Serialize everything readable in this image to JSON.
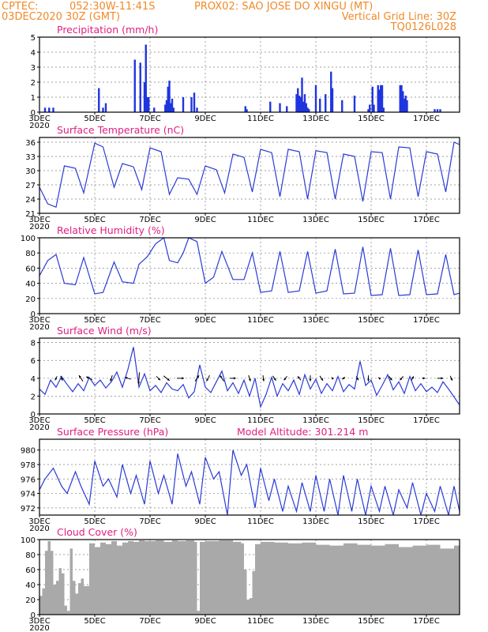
{
  "header": {
    "line1_left": "CPTEC:",
    "coords": "052:30W-11:41S",
    "station": "PROX02: SAO JOSE DO XINGU (MT)",
    "date": "03DEC2020 30Z (GMT)",
    "grid_note": "Vertical Grid Line: 30Z",
    "model_code": "TQ0126L028"
  },
  "x_axis": {
    "start_day": 3,
    "end_day": 18.2,
    "tick_days": [
      3,
      5,
      7,
      9,
      11,
      13,
      15,
      17
    ],
    "tick_labels": [
      "3DEC",
      "5DEC",
      "7DEC",
      "9DEC",
      "11DEC",
      "13DEC",
      "15DEC",
      "17DEC"
    ],
    "year_label": "2020"
  },
  "colors": {
    "header": "#f08a28",
    "panel_title": "#e0207f",
    "series_line": "#2a3bd6",
    "precip_bar": "#1f35e0",
    "cloud_fill": "#a9a9a9",
    "wind_arrow": "#000000"
  },
  "chart_data": [
    {
      "id": "precip",
      "type": "bar",
      "title": "Precipitation (mm/h)",
      "ylim": [
        0,
        5
      ],
      "yticks": [
        0,
        1,
        2,
        3,
        4,
        5
      ],
      "x": [
        3.2,
        3.35,
        3.5,
        5.15,
        5.3,
        5.4,
        6.45,
        6.65,
        6.8,
        6.85,
        6.9,
        6.95,
        7.15,
        7.55,
        7.6,
        7.65,
        7.7,
        7.75,
        7.8,
        7.85,
        8.2,
        8.5,
        8.6,
        8.7,
        10.45,
        10.5,
        11.35,
        11.7,
        11.95,
        12.3,
        12.35,
        12.4,
        12.45,
        12.5,
        12.55,
        12.6,
        12.65,
        12.7,
        12.75,
        13.0,
        13.15,
        13.35,
        13.55,
        13.6,
        13.95,
        14.4,
        14.9,
        14.95,
        15.05,
        15.1,
        15.25,
        15.3,
        15.35,
        15.4,
        15.45,
        16.05,
        16.1,
        16.15,
        16.2,
        16.25,
        16.3,
        17.3,
        17.4,
        17.5
      ],
      "values": [
        0.3,
        0.3,
        0.3,
        1.6,
        0.3,
        0.6,
        3.5,
        3.3,
        2.0,
        4.5,
        1.0,
        1.0,
        0.3,
        0.5,
        0.8,
        1.7,
        2.1,
        0.6,
        0.9,
        0.3,
        1.0,
        1.0,
        1.3,
        0.3,
        0.4,
        0.2,
        0.7,
        0.6,
        0.4,
        1.2,
        1.6,
        1.1,
        1.0,
        2.3,
        0.7,
        1.2,
        0.6,
        0.3,
        0.2,
        1.8,
        0.9,
        1.2,
        2.7,
        1.6,
        0.8,
        1.1,
        0.2,
        0.5,
        1.7,
        0.5,
        1.8,
        1.5,
        1.8,
        1.8,
        0.3,
        1.8,
        1.8,
        1.4,
        0.9,
        1.1,
        0.8,
        0.2,
        0.2,
        0.2
      ]
    },
    {
      "id": "temp",
      "type": "line",
      "title": "Surface Temperature (nC)",
      "ylim": [
        21,
        37
      ],
      "yticks": [
        21,
        24,
        27,
        30,
        33,
        36
      ],
      "x": [
        3.0,
        3.3,
        3.6,
        3.9,
        4.3,
        4.6,
        5.0,
        5.3,
        5.7,
        6.0,
        6.4,
        6.7,
        7.0,
        7.4,
        7.7,
        8.0,
        8.4,
        8.7,
        9.0,
        9.4,
        9.7,
        10.0,
        10.4,
        10.7,
        11.0,
        11.4,
        11.7,
        12.0,
        12.4,
        12.7,
        13.0,
        13.4,
        13.7,
        14.0,
        14.4,
        14.7,
        15.0,
        15.4,
        15.7,
        16.0,
        16.4,
        16.7,
        17.0,
        17.4,
        17.7,
        18.0,
        18.2
      ],
      "values": [
        26.5,
        23,
        22.3,
        31,
        30.5,
        25.3,
        35.8,
        35,
        26.5,
        31.5,
        30.8,
        26,
        34.8,
        34,
        25,
        28.5,
        28.2,
        25,
        31,
        30.2,
        25.3,
        33.5,
        32.8,
        25.5,
        34.5,
        33.8,
        24.5,
        34.5,
        34,
        24,
        34.2,
        33.8,
        24,
        33.5,
        33,
        23.5,
        34,
        33.8,
        24,
        35,
        34.8,
        24.5,
        34,
        33.5,
        25.5,
        36,
        35.5
      ]
    },
    {
      "id": "humidity",
      "type": "line",
      "title": "Relative Humidity (%)",
      "ylim": [
        0,
        100
      ],
      "yticks": [
        0,
        20,
        40,
        60,
        80,
        100
      ],
      "x": [
        3.0,
        3.3,
        3.6,
        3.9,
        4.3,
        4.6,
        5.0,
        5.3,
        5.7,
        6.0,
        6.4,
        6.6,
        6.9,
        7.2,
        7.5,
        7.7,
        8.0,
        8.2,
        8.4,
        8.7,
        9.0,
        9.3,
        9.6,
        10.0,
        10.4,
        10.7,
        11.0,
        11.4,
        11.7,
        12.0,
        12.4,
        12.7,
        13.0,
        13.4,
        13.7,
        14.0,
        14.4,
        14.7,
        15.0,
        15.4,
        15.7,
        16.0,
        16.4,
        16.7,
        17.0,
        17.4,
        17.7,
        18.0,
        18.2
      ],
      "values": [
        50,
        70,
        78,
        40,
        38,
        74,
        26,
        28,
        68,
        42,
        40,
        65,
        75,
        92,
        100,
        70,
        67,
        80,
        100,
        95,
        40,
        48,
        82,
        45,
        45,
        80,
        28,
        30,
        82,
        28,
        30,
        82,
        27,
        30,
        85,
        26,
        27,
        88,
        24,
        25,
        86,
        24,
        25,
        84,
        25,
        26,
        78,
        25,
        27
      ]
    },
    {
      "id": "wind",
      "type": "line",
      "title": "Surface Wind (m/s)",
      "ylim": [
        0,
        8.5
      ],
      "yticks": [
        0,
        2,
        4,
        6,
        8
      ],
      "x": [
        3.0,
        3.2,
        3.4,
        3.6,
        3.8,
        4.0,
        4.2,
        4.4,
        4.6,
        4.8,
        5.0,
        5.2,
        5.4,
        5.6,
        5.8,
        6.0,
        6.2,
        6.4,
        6.6,
        6.8,
        7.0,
        7.2,
        7.4,
        7.6,
        7.8,
        8.0,
        8.2,
        8.4,
        8.6,
        8.8,
        9.0,
        9.2,
        9.4,
        9.6,
        9.8,
        10.0,
        10.2,
        10.4,
        10.6,
        10.8,
        11.0,
        11.2,
        11.4,
        11.6,
        11.8,
        12.0,
        12.2,
        12.4,
        12.6,
        12.8,
        13.0,
        13.2,
        13.4,
        13.6,
        13.8,
        14.0,
        14.2,
        14.4,
        14.6,
        14.8,
        15.0,
        15.2,
        15.4,
        15.6,
        15.8,
        16.0,
        16.2,
        16.4,
        16.6,
        16.8,
        17.0,
        17.2,
        17.4,
        17.6,
        17.8,
        18.0,
        18.2
      ],
      "values": [
        2.8,
        2.2,
        3.8,
        3.0,
        4.2,
        3.3,
        2.5,
        3.4,
        2.6,
        4.1,
        3.2,
        3.8,
        2.9,
        3.6,
        4.7,
        3.0,
        5.0,
        7.5,
        3.0,
        4.5,
        2.6,
        3.2,
        2.4,
        3.5,
        2.8,
        2.6,
        3.3,
        1.8,
        2.5,
        5.5,
        3.0,
        2.4,
        3.6,
        4.8,
        2.6,
        3.5,
        2.3,
        3.8,
        2.0,
        4.0,
        0.8,
        2.2,
        4.1,
        2.0,
        3.4,
        2.6,
        3.8,
        2.2,
        4.4,
        2.8,
        3.9,
        2.3,
        3.4,
        2.6,
        4.2,
        2.5,
        3.3,
        2.8,
        5.9,
        3.2,
        3.8,
        2.1,
        3.2,
        4.4,
        2.7,
        3.6,
        2.3,
        4.2,
        2.6,
        3.4,
        2.5,
        3.0,
        2.4,
        3.6,
        2.8,
        1.9,
        1.0
      ]
    },
    {
      "id": "pressure",
      "type": "line",
      "title": "Surface Pressure (hPa)",
      "subtitle": "Model Altitude: 301.214 m",
      "ylim": [
        971,
        981.5
      ],
      "yticks": [
        972,
        974,
        976,
        978,
        980
      ],
      "x": [
        3.0,
        3.2,
        3.5,
        3.8,
        4.0,
        4.3,
        4.5,
        4.8,
        5.0,
        5.3,
        5.5,
        5.8,
        6.0,
        6.3,
        6.5,
        6.8,
        7.0,
        7.3,
        7.5,
        7.8,
        8.0,
        8.3,
        8.5,
        8.8,
        9.0,
        9.3,
        9.5,
        9.8,
        10.0,
        10.3,
        10.5,
        10.8,
        11.0,
        11.3,
        11.5,
        11.8,
        12.0,
        12.3,
        12.5,
        12.8,
        13.0,
        13.3,
        13.5,
        13.8,
        14.0,
        14.3,
        14.5,
        14.8,
        15.0,
        15.3,
        15.5,
        15.8,
        16.0,
        16.3,
        16.5,
        16.8,
        17.0,
        17.3,
        17.5,
        17.8,
        18.0,
        18.2
      ],
      "values": [
        974.5,
        976,
        977.5,
        975,
        974,
        977,
        975,
        972.5,
        978.5,
        975,
        976,
        973.5,
        978,
        974,
        976.5,
        972.5,
        978.5,
        974,
        976.5,
        972.5,
        979.5,
        975,
        977,
        972.5,
        979,
        976,
        977,
        971,
        980,
        976.5,
        978,
        972,
        977.5,
        973,
        976,
        971.5,
        975,
        971.5,
        975.5,
        971.5,
        976.5,
        971.5,
        976,
        971,
        976.5,
        971.5,
        976,
        971,
        975,
        971.5,
        975,
        971,
        974.5,
        972,
        975.5,
        971,
        974,
        971.5,
        975,
        971,
        975,
        971.5
      ]
    },
    {
      "id": "cloud",
      "type": "area",
      "title": "Cloud Cover (%)",
      "ylim": [
        0,
        100
      ],
      "yticks": [
        0,
        20,
        40,
        60,
        80,
        100
      ],
      "x": [
        3.0,
        3.1,
        3.2,
        3.3,
        3.4,
        3.5,
        3.6,
        3.7,
        3.8,
        3.9,
        4.0,
        4.1,
        4.2,
        4.3,
        4.4,
        4.5,
        4.6,
        4.8,
        5.0,
        5.2,
        5.4,
        5.6,
        5.8,
        6.0,
        6.2,
        6.4,
        6.6,
        6.8,
        7.0,
        7.2,
        7.5,
        7.8,
        8.0,
        8.3,
        8.6,
        8.7,
        8.8,
        9.0,
        9.5,
        10.0,
        10.3,
        10.4,
        10.5,
        10.6,
        10.7,
        10.8,
        11.0,
        11.5,
        12.0,
        12.5,
        13.0,
        13.5,
        14.0,
        14.5,
        15.0,
        15.5,
        16.0,
        16.5,
        17.0,
        17.5,
        18.0,
        18.2
      ],
      "values": [
        25,
        35,
        85,
        98,
        85,
        40,
        45,
        62,
        55,
        12,
        5,
        88,
        45,
        28,
        42,
        48,
        38,
        95,
        90,
        96,
        94,
        98,
        92,
        96,
        98,
        97,
        99,
        98,
        98,
        99,
        97,
        99,
        98,
        99,
        97,
        5,
        97,
        98,
        99,
        97,
        95,
        60,
        20,
        22,
        58,
        94,
        97,
        96,
        95,
        96,
        93,
        92,
        95,
        93,
        92,
        94,
        90,
        92,
        93,
        88,
        92,
        95
      ]
    }
  ],
  "wind_vectors": {
    "x": [
      3.6,
      3.8,
      4.5,
      4.8,
      5.6,
      6.2,
      6.6,
      7.3,
      7.6,
      8.1,
      8.7,
      9.1,
      9.6,
      10.0,
      10.6,
      11.1,
      11.5,
      11.9,
      12.4,
      12.8,
      13.2,
      13.6,
      14.0,
      14.5,
      14.9,
      15.3,
      15.7,
      16.1,
      16.5,
      16.9,
      17.5,
      17.9
    ],
    "u": [
      -0.5,
      0.5,
      -1.0,
      -1.5,
      -0.5,
      -1.5,
      -0.2,
      1.0,
      1.5,
      1.8,
      1.0,
      -0.8,
      -1.0,
      1.5,
      0.5,
      0.2,
      0.8,
      -0.8,
      -0.8,
      0.0,
      0.8,
      -0.5,
      0.8,
      0.5,
      0.0,
      -0.5,
      0.8,
      -0.8,
      0.5,
      0.8,
      1.5,
      0.5
    ],
    "v": [
      -1.0,
      -1.2,
      1.5,
      0.8,
      -1.5,
      0.5,
      -3.0,
      -1.0,
      -1.2,
      0.0,
      1.5,
      -1.5,
      1.5,
      0.0,
      -1.5,
      -1.5,
      -1.2,
      -1.0,
      1.0,
      -1.5,
      -1.2,
      0.5,
      0.5,
      -1.0,
      -1.5,
      0.5,
      -1.0,
      -1.0,
      1.0,
      0.0,
      0.0,
      -1.2
    ]
  }
}
